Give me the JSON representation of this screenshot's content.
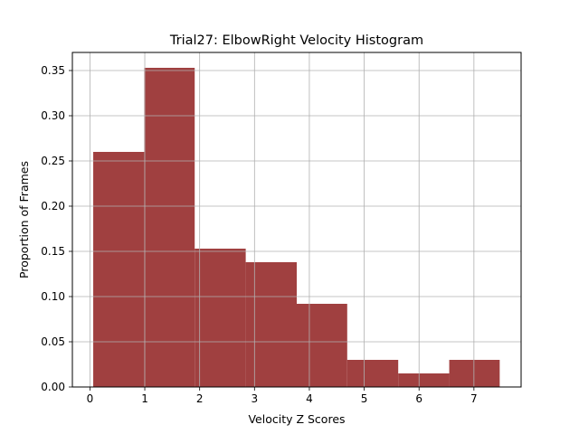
{
  "chart_data": {
    "type": "bar",
    "title": "Trial27: ElbowRight Velocity Histogram",
    "xlabel": "Velocity Z Scores",
    "ylabel": "Proportion of Frames",
    "xlim": [
      -0.32,
      7.86
    ],
    "ylim": [
      0,
      0.37
    ],
    "xticks": [
      0,
      1,
      2,
      3,
      4,
      5,
      6,
      7
    ],
    "yticks": [
      0.0,
      0.05,
      0.1,
      0.15,
      0.2,
      0.25,
      0.3,
      0.35
    ],
    "ytick_labels": [
      "0.00",
      "0.05",
      "0.10",
      "0.15",
      "0.20",
      "0.25",
      "0.30",
      "0.35"
    ],
    "grid": true,
    "bar_color": "#a04040",
    "bins": [
      {
        "left": 0.06,
        "right": 0.99,
        "value": 0.26
      },
      {
        "left": 0.99,
        "right": 1.91,
        "value": 0.353
      },
      {
        "left": 1.91,
        "right": 2.84,
        "value": 0.153
      },
      {
        "left": 2.84,
        "right": 3.77,
        "value": 0.138
      },
      {
        "left": 3.77,
        "right": 4.69,
        "value": 0.092
      },
      {
        "left": 4.69,
        "right": 5.62,
        "value": 0.03
      },
      {
        "left": 5.62,
        "right": 6.55,
        "value": 0.015
      },
      {
        "left": 6.55,
        "right": 7.47,
        "value": 0.03
      }
    ]
  }
}
